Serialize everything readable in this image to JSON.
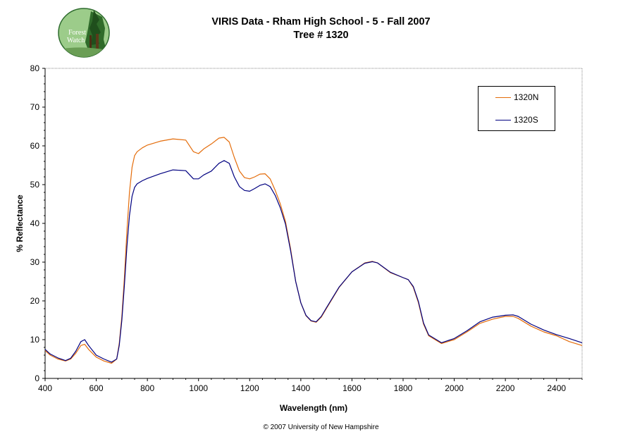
{
  "title_line1": "VIRIS Data - Rham High School - 5 - Fall 2007",
  "title_line2": "Tree # 1320",
  "logo": {
    "text_line1": "Forest",
    "text_line2": "Watch"
  },
  "footer": "© 2007 University of New Hampshire",
  "chart_data": {
    "type": "line",
    "xlabel": "Wavelength (nm)",
    "ylabel": "% Reflectance",
    "xlim": [
      400,
      2500
    ],
    "ylim": [
      0,
      80
    ],
    "xticks": [
      400,
      600,
      800,
      1000,
      1200,
      1400,
      1600,
      1800,
      2000,
      2200,
      2400
    ],
    "yticks": [
      0,
      10,
      20,
      30,
      40,
      50,
      60,
      70,
      80
    ],
    "grid": false,
    "legend_position": "top-right",
    "series": [
      {
        "name": "1320N",
        "color": "#e46c0a",
        "x": [
          400,
          420,
          450,
          480,
          500,
          520,
          540,
          555,
          570,
          600,
          630,
          660,
          680,
          690,
          700,
          710,
          720,
          730,
          740,
          750,
          760,
          780,
          800,
          850,
          900,
          950,
          980,
          1000,
          1020,
          1050,
          1080,
          1100,
          1120,
          1140,
          1160,
          1180,
          1200,
          1220,
          1240,
          1260,
          1280,
          1300,
          1320,
          1340,
          1360,
          1380,
          1400,
          1420,
          1440,
          1460,
          1480,
          1500,
          1550,
          1600,
          1650,
          1680,
          1700,
          1750,
          1800,
          1820,
          1840,
          1860,
          1880,
          1900,
          1950,
          2000,
          2050,
          2100,
          2150,
          2200,
          2230,
          2250,
          2300,
          2350,
          2400,
          2450,
          2500
        ],
        "y": [
          7.2,
          6.0,
          5.0,
          4.5,
          5.0,
          6.5,
          8.5,
          8.8,
          7.5,
          5.5,
          4.5,
          3.9,
          5.0,
          9.0,
          16.0,
          26.0,
          38.0,
          48.0,
          54.5,
          57.5,
          58.5,
          59.5,
          60.2,
          61.2,
          61.8,
          61.5,
          58.5,
          58.0,
          59.2,
          60.5,
          62.0,
          62.2,
          61.0,
          57.0,
          53.5,
          51.8,
          51.5,
          52.0,
          52.7,
          52.8,
          51.5,
          48.5,
          45.0,
          40.5,
          33.5,
          25.0,
          19.5,
          16.2,
          14.8,
          14.5,
          15.8,
          18.0,
          23.5,
          27.5,
          29.8,
          30.2,
          29.8,
          27.3,
          26.0,
          25.5,
          23.5,
          19.5,
          14.0,
          11.0,
          9.0,
          10.0,
          12.0,
          14.2,
          15.3,
          16.0,
          16.0,
          15.5,
          13.5,
          12.0,
          11.0,
          9.5,
          8.5
        ]
      },
      {
        "name": "1320S",
        "color": "#000080",
        "x": [
          400,
          420,
          450,
          480,
          500,
          520,
          540,
          555,
          570,
          600,
          630,
          660,
          680,
          690,
          700,
          710,
          720,
          730,
          740,
          750,
          760,
          780,
          800,
          850,
          900,
          950,
          980,
          1000,
          1020,
          1050,
          1080,
          1100,
          1120,
          1140,
          1160,
          1180,
          1200,
          1220,
          1240,
          1260,
          1280,
          1300,
          1320,
          1340,
          1360,
          1380,
          1400,
          1420,
          1440,
          1460,
          1480,
          1500,
          1550,
          1600,
          1650,
          1680,
          1700,
          1750,
          1800,
          1820,
          1840,
          1860,
          1880,
          1900,
          1950,
          2000,
          2050,
          2100,
          2150,
          2200,
          2230,
          2250,
          2300,
          2350,
          2400,
          2450,
          2500
        ],
        "y": [
          7.5,
          6.3,
          5.3,
          4.6,
          5.2,
          7.0,
          9.5,
          10.0,
          8.5,
          6.0,
          5.0,
          4.2,
          5.0,
          8.5,
          15.0,
          24.0,
          34.0,
          42.0,
          47.0,
          49.3,
          50.2,
          51.0,
          51.6,
          52.8,
          53.8,
          53.6,
          51.5,
          51.5,
          52.5,
          53.5,
          55.5,
          56.2,
          55.5,
          52.0,
          49.5,
          48.5,
          48.3,
          49.0,
          49.8,
          50.2,
          49.5,
          47.2,
          44.0,
          39.8,
          33.0,
          25.0,
          19.5,
          16.3,
          14.9,
          14.6,
          16.0,
          18.2,
          23.6,
          27.5,
          29.7,
          30.1,
          29.8,
          27.4,
          26.0,
          25.5,
          23.7,
          19.8,
          14.3,
          11.2,
          9.2,
          10.3,
          12.3,
          14.6,
          15.8,
          16.3,
          16.4,
          16.0,
          14.0,
          12.5,
          11.3,
          10.3,
          9.2
        ]
      }
    ]
  }
}
